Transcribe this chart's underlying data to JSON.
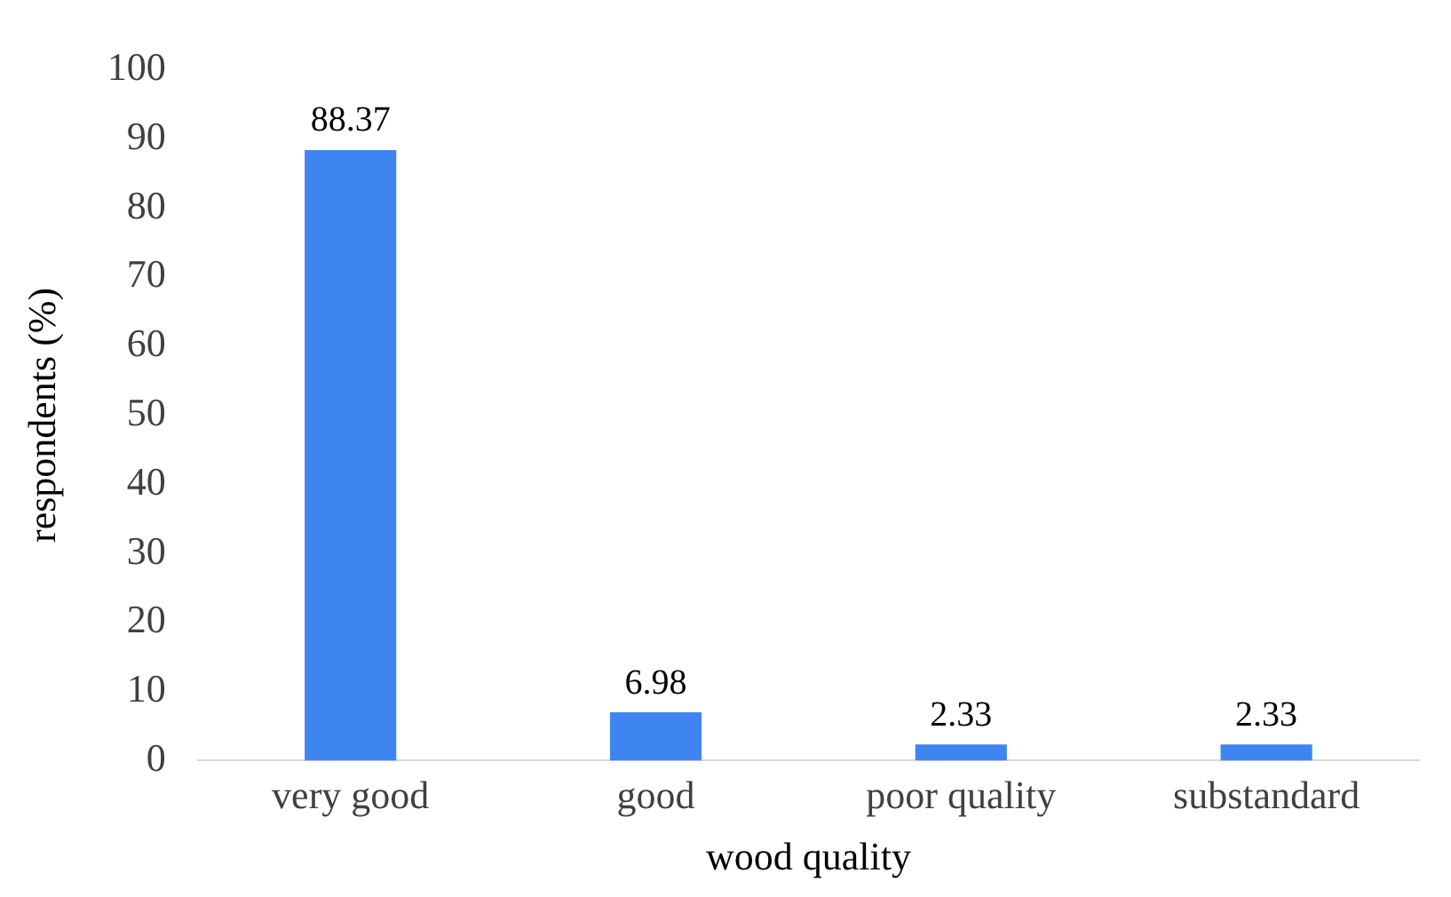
{
  "chart_data": {
    "type": "bar",
    "xlabel": "wood quality",
    "ylabel": "respondents (%)",
    "categories": [
      "very good",
      "good",
      "poor quality",
      "substandard"
    ],
    "values": [
      88.37,
      6.98,
      2.33,
      2.33
    ],
    "color": "#3f85f2",
    "ylim": [
      0,
      100
    ],
    "yticks": [
      0,
      10,
      20,
      30,
      40,
      50,
      60,
      70,
      80,
      90,
      100
    ],
    "grid": false,
    "legend": false,
    "data_labels": true
  }
}
